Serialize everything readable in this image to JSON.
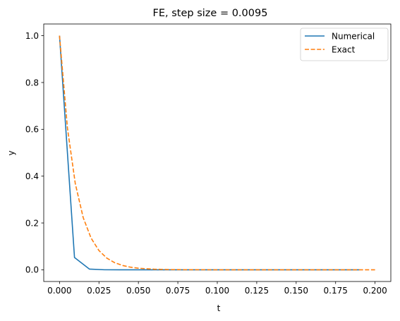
{
  "chart_data": {
    "type": "line",
    "title": "FE, step size = 0.0095",
    "xlabel": "t",
    "ylabel": "y",
    "xlim": [
      -0.01,
      0.21
    ],
    "ylim": [
      -0.05,
      1.05
    ],
    "xticks": [
      0.0,
      0.025,
      0.05,
      0.075,
      0.1,
      0.125,
      0.15,
      0.175,
      0.2
    ],
    "xtick_labels": [
      "0.000",
      "0.025",
      "0.050",
      "0.075",
      "0.100",
      "0.125",
      "0.150",
      "0.175",
      "0.200"
    ],
    "yticks": [
      0.0,
      0.2,
      0.4,
      0.6,
      0.8,
      1.0
    ],
    "ytick_labels": [
      "0.0",
      "0.2",
      "0.4",
      "0.6",
      "0.8",
      "1.0"
    ],
    "grid": false,
    "legend_position": "top-right",
    "series": [
      {
        "name": "Numerical",
        "color": "#1f77b4",
        "dash": "solid",
        "points": [
          [
            0.0,
            1.0
          ],
          [
            0.0095,
            0.0525
          ],
          [
            0.019,
            0.0028
          ],
          [
            0.0285,
            0.0001
          ],
          [
            0.038,
            0.0
          ],
          [
            0.0475,
            0.0
          ],
          [
            0.057,
            0.0
          ],
          [
            0.0665,
            0.0
          ],
          [
            0.076,
            0.0
          ],
          [
            0.0855,
            0.0
          ],
          [
            0.095,
            0.0
          ],
          [
            0.1045,
            0.0
          ],
          [
            0.114,
            0.0
          ],
          [
            0.1235,
            0.0
          ],
          [
            0.133,
            0.0
          ],
          [
            0.1425,
            0.0
          ],
          [
            0.152,
            0.0
          ],
          [
            0.1615,
            0.0
          ],
          [
            0.171,
            0.0
          ],
          [
            0.1805,
            0.0
          ],
          [
            0.19,
            0.0
          ]
        ]
      },
      {
        "name": "Exact",
        "color": "#ff7f0e",
        "dash": "dashed",
        "points": [
          [
            0.0,
            1.0
          ],
          [
            0.005,
            0.6065
          ],
          [
            0.01,
            0.3679
          ],
          [
            0.015,
            0.2231
          ],
          [
            0.02,
            0.1353
          ],
          [
            0.025,
            0.0821
          ],
          [
            0.03,
            0.0498
          ],
          [
            0.035,
            0.0302
          ],
          [
            0.04,
            0.0183
          ],
          [
            0.045,
            0.0111
          ],
          [
            0.05,
            0.0067
          ],
          [
            0.06,
            0.0025
          ],
          [
            0.07,
            0.0009
          ],
          [
            0.08,
            0.0003
          ],
          [
            0.1,
            0.0
          ],
          [
            0.12,
            0.0
          ],
          [
            0.14,
            0.0
          ],
          [
            0.16,
            0.0
          ],
          [
            0.18,
            0.0
          ],
          [
            0.2,
            0.0
          ]
        ]
      }
    ]
  }
}
